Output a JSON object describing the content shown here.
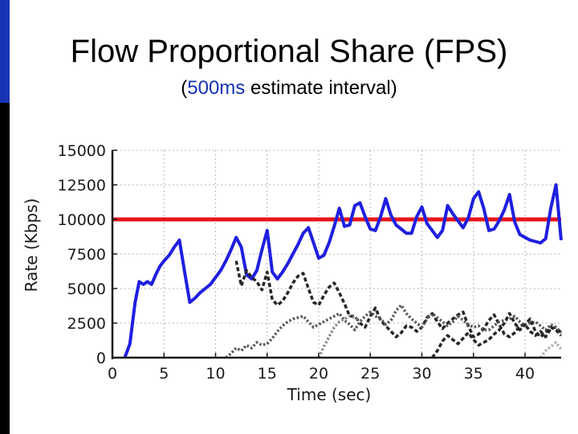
{
  "slide": {
    "title": "Flow Proportional Share (FPS)",
    "subtitle_open": "(",
    "subtitle_accent": "500ms",
    "subtitle_rest": " estimate interval)",
    "accent_color": "#1533b5"
  },
  "chart_data": {
    "type": "line",
    "xlabel": "Time (sec)",
    "ylabel": "Rate (Kbps)",
    "xlim": [
      0,
      43.5
    ],
    "ylim": [
      0,
      15000
    ],
    "xticks": [
      0,
      5,
      10,
      15,
      20,
      25,
      30,
      35,
      40
    ],
    "yticks": [
      0,
      2500,
      5000,
      7500,
      10000,
      12500,
      15000
    ],
    "ytick_labels": [
      "0",
      "2500",
      "5000",
      "7500",
      "10000",
      "12500",
      "15000"
    ],
    "grid": true,
    "hlines": [
      {
        "y": 10000,
        "color": "#e8141b"
      }
    ],
    "series": [
      {
        "color": "#1f1fe0",
        "style": "solid",
        "x": [
          1.2,
          1.7,
          2.2,
          2.6,
          3.0,
          3.4,
          3.8,
          4.2,
          4.6,
          5.0,
          5.5,
          6.0,
          6.5,
          7.0,
          7.5,
          8.0,
          8.5,
          9.0,
          9.5,
          10.0,
          10.5,
          11.0,
          11.5,
          12.0,
          12.5,
          13.0,
          13.5,
          14.0,
          14.5,
          15.0,
          15.5,
          16.0,
          16.5,
          17.0,
          17.5,
          18.0,
          18.5,
          19.0,
          19.5,
          20.0,
          20.5,
          21.0,
          21.5,
          22.0,
          22.5,
          23.0,
          23.5,
          24.0,
          24.5,
          25.0,
          25.5,
          26.0,
          26.5,
          27.0,
          27.5,
          28.0,
          28.5,
          29.0,
          29.5,
          30.0,
          30.5,
          31.0,
          31.5,
          32.0,
          32.5,
          33.0,
          33.5,
          34.0,
          34.5,
          35.0,
          35.5,
          36.0,
          36.5,
          37.0,
          37.5,
          38.0,
          38.5,
          39.0,
          39.5,
          40.0,
          40.5,
          41.0,
          41.5,
          42.0,
          42.5,
          43.0,
          43.5
        ],
        "y": [
          0,
          1000,
          4000,
          5500,
          5300,
          5500,
          5300,
          6000,
          6600,
          7000,
          7400,
          8000,
          8500,
          6200,
          4000,
          4300,
          4700,
          5000,
          5300,
          5800,
          6300,
          7000,
          7800,
          8700,
          8000,
          6000,
          5700,
          6300,
          7800,
          9200,
          6200,
          5700,
          6200,
          6800,
          7500,
          8200,
          9000,
          9400,
          8300,
          7200,
          7400,
          8300,
          9500,
          10800,
          9500,
          9600,
          11000,
          11200,
          10200,
          9300,
          9200,
          10200,
          11500,
          10300,
          9600,
          9300,
          9000,
          9000,
          10200,
          10900,
          9700,
          9200,
          8700,
          9200,
          11000,
          10400,
          9900,
          9400,
          10100,
          11500,
          12000,
          10800,
          9200,
          9300,
          9900,
          10700,
          11800,
          9800,
          8900,
          8700,
          8500,
          8400,
          8300,
          8600,
          10800,
          12500,
          8500
        ]
      },
      {
        "color": "#262626",
        "style": "dashed",
        "x": [
          12.0,
          12.5,
          13.0,
          13.5,
          14.0,
          14.5,
          15.0,
          15.5,
          16.0,
          16.5,
          17.0,
          17.5,
          18.0,
          18.5,
          19.0,
          19.5,
          20.0,
          20.5,
          21.0,
          21.5,
          22.0,
          22.5,
          23.0,
          23.5,
          24.0,
          24.5,
          25.0,
          25.5,
          26.0,
          26.5,
          27.0,
          27.5,
          28.0,
          28.5,
          29.0,
          29.5,
          30.0,
          30.5,
          31.0,
          31.5,
          32.0,
          32.5,
          33.0,
          33.5,
          34.0,
          34.5,
          35.0,
          35.5,
          36.0,
          36.5,
          37.0,
          37.5,
          38.0,
          38.5,
          39.0,
          39.5,
          40.0,
          40.5,
          41.0,
          41.5,
          42.0,
          42.5,
          43.0,
          43.5
        ],
        "y": [
          7000,
          5200,
          6300,
          5800,
          5500,
          4900,
          6200,
          4200,
          3800,
          4100,
          4700,
          5400,
          5900,
          6100,
          5000,
          4000,
          3800,
          4500,
          5100,
          5400,
          4700,
          3900,
          3000,
          3000,
          2500,
          2200,
          3000,
          3600,
          2700,
          2300,
          1900,
          1500,
          1800,
          2300,
          2200,
          1900,
          2200,
          2900,
          3200,
          2600,
          2100,
          2500,
          2800,
          3100,
          3300,
          2300,
          1500,
          1700,
          2100,
          2700,
          3100,
          2400,
          1700,
          1500,
          1800,
          2300,
          2400,
          1900,
          1600,
          1900,
          1500,
          2100,
          2200,
          1800
        ]
      },
      {
        "color": "#5a5a5a",
        "style": "dotted",
        "x": [
          11.0,
          11.5,
          12.0,
          12.5,
          13.0,
          13.5,
          14.0,
          14.5,
          15.0,
          15.5,
          16.0,
          16.5,
          17.0,
          17.5,
          18.0,
          18.5,
          19.0,
          19.5,
          20.0,
          20.5,
          21.0,
          21.5,
          22.0,
          22.5,
          23.0,
          23.5,
          24.0,
          24.5,
          25.0,
          25.5,
          26.0,
          26.5,
          27.0,
          27.5,
          28.0,
          28.5,
          29.0,
          29.5,
          30.0,
          30.5,
          31.0,
          31.5,
          32.0,
          32.5,
          33.0,
          33.5,
          34.0,
          34.5,
          35.0,
          35.5,
          36.0,
          36.5,
          37.0,
          37.5,
          38.0,
          38.5,
          39.0,
          39.5,
          40.0,
          40.5,
          41.0,
          41.5,
          42.0,
          42.5,
          43.0,
          43.5
        ],
        "y": [
          0,
          300,
          700,
          500,
          900,
          700,
          1100,
          900,
          1000,
          1400,
          1900,
          2300,
          2600,
          2800,
          2900,
          3000,
          2600,
          2200,
          2400,
          2600,
          2800,
          3000,
          3200,
          2700,
          2400,
          2000,
          2600,
          3000,
          3300,
          3000,
          2800,
          2400,
          2700,
          3400,
          3800,
          3200,
          2800,
          2500,
          2200,
          2800,
          3200,
          2900,
          2600,
          2300,
          2600,
          3000,
          2700,
          2400,
          2200,
          2300,
          2000,
          2000,
          2300,
          2600,
          2700,
          2800,
          3000,
          2600,
          2300,
          2500,
          2600,
          2300,
          2000,
          2400,
          2200,
          1800
        ]
      },
      {
        "color": "#8a8a8a",
        "style": "dotted",
        "x": [
          20.0,
          20.5,
          21.0,
          21.5,
          22.0,
          22.5,
          23.0,
          23.5,
          24.0
        ],
        "y": [
          0,
          800,
          1500,
          2200,
          2600,
          2800,
          3000,
          2900,
          2700
        ]
      },
      {
        "color": "#262626",
        "style": "dashed",
        "x": [
          31.0,
          31.5,
          32.0,
          32.5,
          33.0,
          33.5,
          34.0,
          34.5,
          35.0,
          35.5,
          36.0,
          36.5,
          37.0,
          37.5,
          38.0,
          38.5,
          39.0,
          39.5,
          40.0,
          40.5,
          41.0,
          41.5,
          42.0,
          42.5,
          43.0,
          43.5
        ],
        "y": [
          0,
          500,
          1200,
          1600,
          1300,
          1000,
          1400,
          1800,
          1300,
          900,
          1100,
          1300,
          1700,
          2000,
          2500,
          3200,
          2500,
          2000,
          2400,
          2800,
          1900,
          1500,
          1800,
          2200,
          2000,
          1600
        ]
      },
      {
        "color": "#b0b0b0",
        "style": "dotted",
        "x": [
          41.5,
          42.0,
          42.5,
          43.0,
          43.5
        ],
        "y": [
          0,
          500,
          800,
          1100,
          600
        ]
      }
    ]
  }
}
